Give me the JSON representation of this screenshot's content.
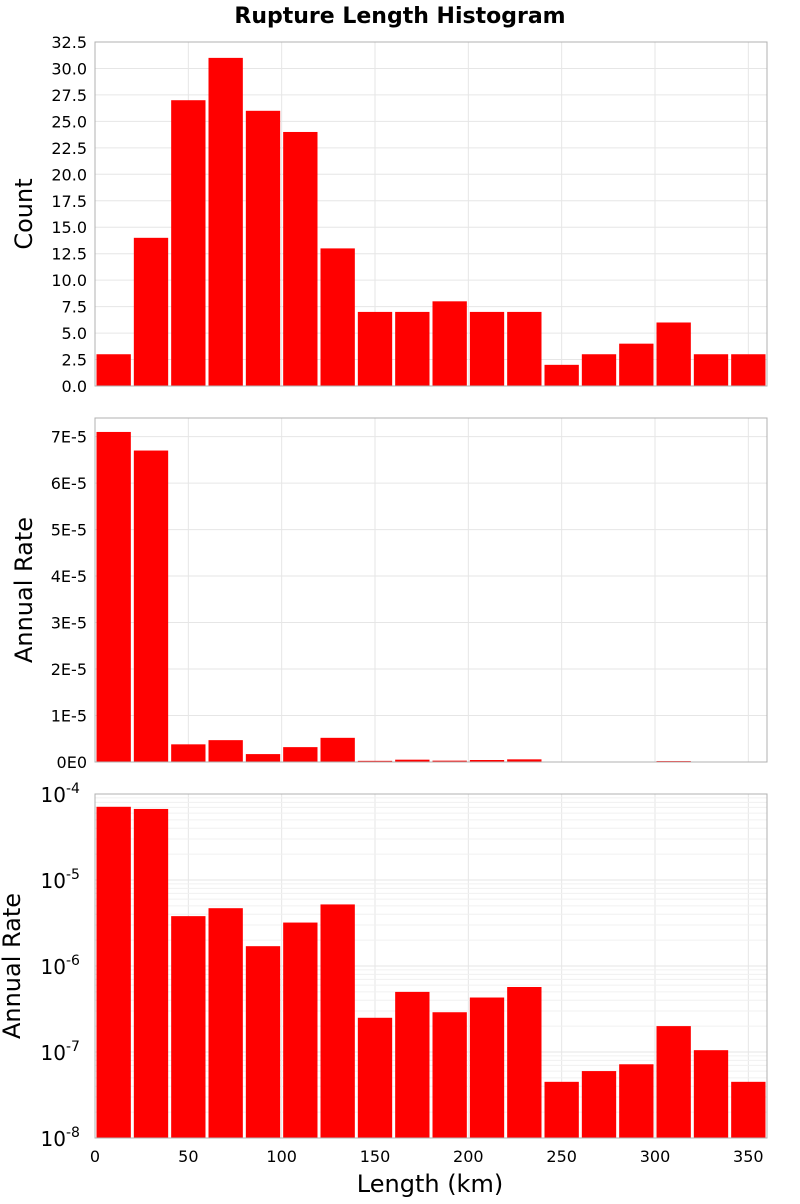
{
  "chart_data": {
    "title": "Rupture Length Histogram",
    "xlabel": "Length (km)",
    "xlim": [
      0,
      360
    ],
    "xticks": [
      0,
      50,
      100,
      150,
      200,
      250,
      300,
      350
    ],
    "bin_width": 20,
    "bin_centers": [
      10,
      30,
      50,
      70,
      90,
      110,
      130,
      150,
      170,
      190,
      210,
      230,
      250,
      270,
      290,
      310,
      330,
      350
    ],
    "color": "#ff0000",
    "grid": true,
    "panels": [
      {
        "type": "bar",
        "ylabel": "Count",
        "yscale": "linear",
        "ylim": [
          0,
          32.5
        ],
        "yticks": [
          "0.0",
          "2.5",
          "5.0",
          "7.5",
          "10.0",
          "12.5",
          "15.0",
          "17.5",
          "20.0",
          "22.5",
          "25.0",
          "27.5",
          "30.0",
          "32.5"
        ],
        "values": [
          3,
          14,
          27,
          31,
          26,
          24,
          13,
          7,
          7,
          8,
          7,
          7,
          2,
          3,
          4,
          6,
          3,
          3
        ]
      },
      {
        "type": "bar",
        "ylabel": "Annual Rate",
        "yscale": "linear",
        "ylim": [
          0,
          7.4e-05
        ],
        "yticks": [
          "0E0",
          "1E-5",
          "2E-5",
          "3E-5",
          "4E-5",
          "5E-5",
          "6E-5",
          "7E-5"
        ],
        "values": [
          7.1e-05,
          6.7e-05,
          3.8e-06,
          4.7e-06,
          1.7e-06,
          3.2e-06,
          5.2e-06,
          2.5e-07,
          5e-07,
          2.9e-07,
          4.3e-07,
          5.7e-07,
          4.5e-08,
          6e-08,
          7.2e-08,
          2e-07,
          1.05e-07,
          4.5e-08
        ]
      },
      {
        "type": "bar",
        "ylabel": "Annual Rate",
        "yscale": "log",
        "ylim": [
          1e-08,
          0.0001
        ],
        "yticks": [
          {
            "base": "10",
            "exp": "-4"
          },
          {
            "base": "10",
            "exp": "-5"
          },
          {
            "base": "10",
            "exp": "-6"
          },
          {
            "base": "10",
            "exp": "-7"
          },
          {
            "base": "10",
            "exp": "-8"
          }
        ],
        "values": [
          7.1e-05,
          6.7e-05,
          3.8e-06,
          4.7e-06,
          1.7e-06,
          3.2e-06,
          5.2e-06,
          2.5e-07,
          5e-07,
          2.9e-07,
          4.3e-07,
          5.7e-07,
          4.5e-08,
          6e-08,
          7.2e-08,
          2e-07,
          1.05e-07,
          4.5e-08
        ]
      }
    ]
  }
}
